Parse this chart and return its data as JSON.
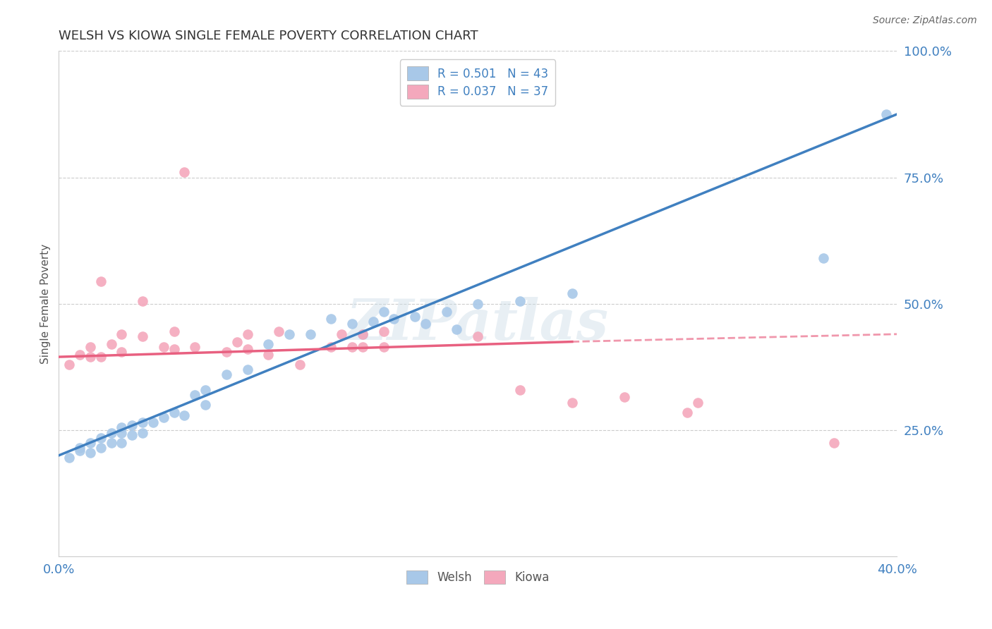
{
  "title": "WELSH VS KIOWA SINGLE FEMALE POVERTY CORRELATION CHART",
  "source": "Source: ZipAtlas.com",
  "ylabel": "Single Female Poverty",
  "xlabel": "",
  "xlim": [
    0,
    0.4
  ],
  "ylim": [
    0,
    1.0
  ],
  "xtick_positions": [
    0.0,
    0.05,
    0.1,
    0.15,
    0.2,
    0.25,
    0.3,
    0.35,
    0.4
  ],
  "xticklabels": [
    "0.0%",
    "",
    "",
    "",
    "",
    "",
    "",
    "",
    "40.0%"
  ],
  "yticks_right": [
    0.0,
    0.25,
    0.5,
    0.75,
    1.0
  ],
  "ytick_right_labels": [
    "",
    "25.0%",
    "50.0%",
    "75.0%",
    "100.0%"
  ],
  "welsh_color": "#a8c8e8",
  "kiowa_color": "#f4a8bc",
  "welsh_line_color": "#4080c0",
  "kiowa_line_color": "#e86080",
  "welsh_R": 0.501,
  "welsh_N": 43,
  "kiowa_R": 0.037,
  "kiowa_N": 37,
  "watermark": "ZIPatlas",
  "background_color": "#ffffff",
  "grid_color": "#cccccc",
  "welsh_line_x0": 0.0,
  "welsh_line_y0": 0.2,
  "welsh_line_x1": 0.4,
  "welsh_line_y1": 0.875,
  "kiowa_line_x0": 0.0,
  "kiowa_line_y0": 0.395,
  "kiowa_line_solid_x1": 0.245,
  "kiowa_line_y1": 0.425,
  "kiowa_line_x2": 0.4,
  "kiowa_line_y2": 0.44,
  "welsh_x": [
    0.005,
    0.01,
    0.01,
    0.015,
    0.015,
    0.02,
    0.02,
    0.025,
    0.025,
    0.03,
    0.03,
    0.03,
    0.035,
    0.035,
    0.04,
    0.04,
    0.045,
    0.05,
    0.055,
    0.06,
    0.065,
    0.07,
    0.07,
    0.08,
    0.09,
    0.1,
    0.11,
    0.12,
    0.13,
    0.14,
    0.145,
    0.15,
    0.155,
    0.16,
    0.17,
    0.175,
    0.185,
    0.19,
    0.2,
    0.22,
    0.245,
    0.365,
    0.395
  ],
  "welsh_y": [
    0.195,
    0.21,
    0.215,
    0.205,
    0.225,
    0.215,
    0.235,
    0.225,
    0.245,
    0.225,
    0.245,
    0.255,
    0.24,
    0.26,
    0.245,
    0.265,
    0.265,
    0.275,
    0.285,
    0.28,
    0.32,
    0.3,
    0.33,
    0.36,
    0.37,
    0.42,
    0.44,
    0.44,
    0.47,
    0.46,
    0.44,
    0.465,
    0.485,
    0.47,
    0.475,
    0.46,
    0.485,
    0.45,
    0.5,
    0.505,
    0.52,
    0.59,
    0.875
  ],
  "kiowa_x": [
    0.005,
    0.01,
    0.015,
    0.015,
    0.02,
    0.02,
    0.025,
    0.03,
    0.03,
    0.04,
    0.04,
    0.05,
    0.055,
    0.055,
    0.06,
    0.065,
    0.08,
    0.085,
    0.09,
    0.09,
    0.1,
    0.105,
    0.115,
    0.13,
    0.135,
    0.14,
    0.145,
    0.145,
    0.155,
    0.155,
    0.2,
    0.22,
    0.245,
    0.27,
    0.3,
    0.305,
    0.37
  ],
  "kiowa_y": [
    0.38,
    0.4,
    0.395,
    0.415,
    0.395,
    0.545,
    0.42,
    0.405,
    0.44,
    0.435,
    0.505,
    0.415,
    0.41,
    0.445,
    0.76,
    0.415,
    0.405,
    0.425,
    0.41,
    0.44,
    0.4,
    0.445,
    0.38,
    0.415,
    0.44,
    0.415,
    0.415,
    0.44,
    0.415,
    0.445,
    0.435,
    0.33,
    0.305,
    0.315,
    0.285,
    0.305,
    0.225
  ]
}
